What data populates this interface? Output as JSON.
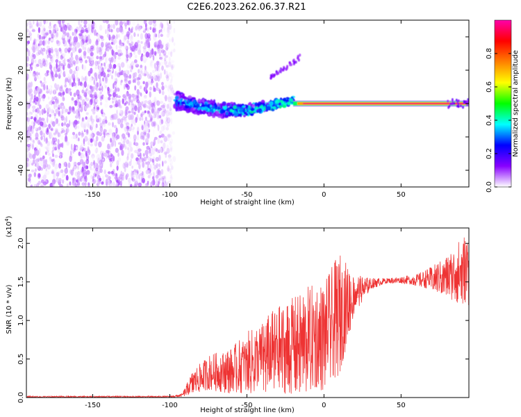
{
  "title": "C2E6.2023.262.06.37.R21",
  "chart_data": [
    {
      "type": "heatmap",
      "xlabel": "Height of straight line (km)",
      "ylabel": "Frequency (Hz)",
      "xlim": [
        -193,
        94
      ],
      "ylim": [
        -50,
        50
      ],
      "x_ticks": [
        -150,
        -100,
        -50,
        0,
        50
      ],
      "y_ticks": [
        -40,
        -20,
        0,
        20,
        40
      ],
      "colorbar": {
        "label": "Normalized spectral amplitude",
        "range": [
          0,
          1
        ],
        "ticks": [
          "0.0",
          "0.2",
          "0.4",
          "0.6",
          "0.8"
        ],
        "colors": [
          "#ffffff",
          "#8800ff",
          "#0000ff",
          "#00ffff",
          "#00ff00",
          "#ffff00",
          "#ff8000",
          "#ff0000",
          "#ff00aa"
        ]
      },
      "regions": [
        {
          "name": "noise",
          "x_range": [
            -193,
            -97
          ],
          "freq_range": [
            -50,
            50
          ],
          "amplitude_range": [
            0.0,
            0.1
          ]
        },
        {
          "name": "emerging signal",
          "x_range": [
            -97,
            -20
          ],
          "freq_center_range": [
            -4,
            3
          ],
          "amplitude_range": [
            0.1,
            0.35
          ]
        },
        {
          "name": "weak drift feature",
          "x_range": [
            -35,
            -15
          ],
          "freq_range": [
            15,
            28
          ],
          "amplitude_range": [
            0.1,
            0.15
          ]
        },
        {
          "name": "steady carrier",
          "x_range": [
            -20,
            94
          ],
          "freq": 0,
          "amplitude_range": [
            0.7,
            1.0
          ]
        }
      ]
    },
    {
      "type": "line",
      "xlabel": "Height of straight line (km)",
      "ylabel": "SNR (10 * v/v)",
      "multiplier": "(x10^4)",
      "xlim": [
        -193,
        94
      ],
      "ylim": [
        0,
        2.2
      ],
      "x_ticks": [
        -150,
        -100,
        -50,
        0,
        50
      ],
      "y_ticks": [
        "0.0",
        "0.5",
        "1.0",
        "1.5",
        "2.0"
      ],
      "color": "#ee3333",
      "envelope": {
        "x": [
          -193,
          -150,
          -100,
          -92,
          -85,
          -75,
          -60,
          -50,
          -40,
          -30,
          -20,
          -10,
          0,
          10,
          20,
          30,
          40,
          50,
          60,
          70,
          80,
          94
        ],
        "y_min": [
          0.0,
          0.0,
          0.0,
          0.01,
          0.05,
          0.1,
          0.05,
          0.05,
          0.05,
          0.05,
          0.05,
          0.05,
          0.1,
          0.3,
          1.1,
          1.4,
          1.48,
          1.48,
          1.45,
          1.4,
          1.3,
          1.15
        ],
        "y_max": [
          0.02,
          0.02,
          0.02,
          0.05,
          0.35,
          0.55,
          0.65,
          0.85,
          1.0,
          1.2,
          1.3,
          1.45,
          1.5,
          1.88,
          1.6,
          1.55,
          1.55,
          1.57,
          1.6,
          1.7,
          1.85,
          2.2
        ]
      }
    }
  ]
}
